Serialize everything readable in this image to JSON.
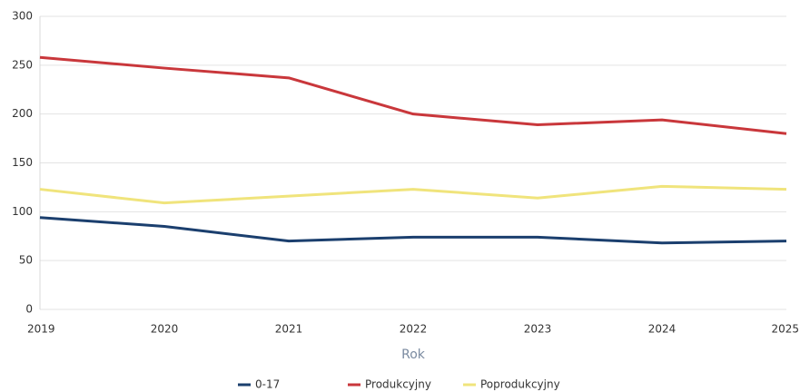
{
  "chart_data": {
    "type": "line",
    "x_label": "Rok",
    "categories": [
      "2019",
      "2020",
      "2021",
      "2022",
      "2023",
      "2024",
      "2025"
    ],
    "series": [
      {
        "name": "0-17",
        "color": "#1b3f6e",
        "values": [
          94,
          85,
          70,
          74,
          74,
          68,
          70
        ]
      },
      {
        "name": "Produkcyjny",
        "color": "#c9373b",
        "values": [
          258,
          247,
          237,
          200,
          189,
          194,
          180
        ]
      },
      {
        "name": "Poprodukcyjny",
        "color": "#f0e47c",
        "values": [
          123,
          109,
          116,
          123,
          114,
          126,
          123
        ]
      }
    ],
    "ylim": [
      0,
      300
    ],
    "yticks": [
      0,
      50,
      100,
      150,
      200,
      250,
      300
    ],
    "grid": true,
    "legend": "bottom"
  }
}
